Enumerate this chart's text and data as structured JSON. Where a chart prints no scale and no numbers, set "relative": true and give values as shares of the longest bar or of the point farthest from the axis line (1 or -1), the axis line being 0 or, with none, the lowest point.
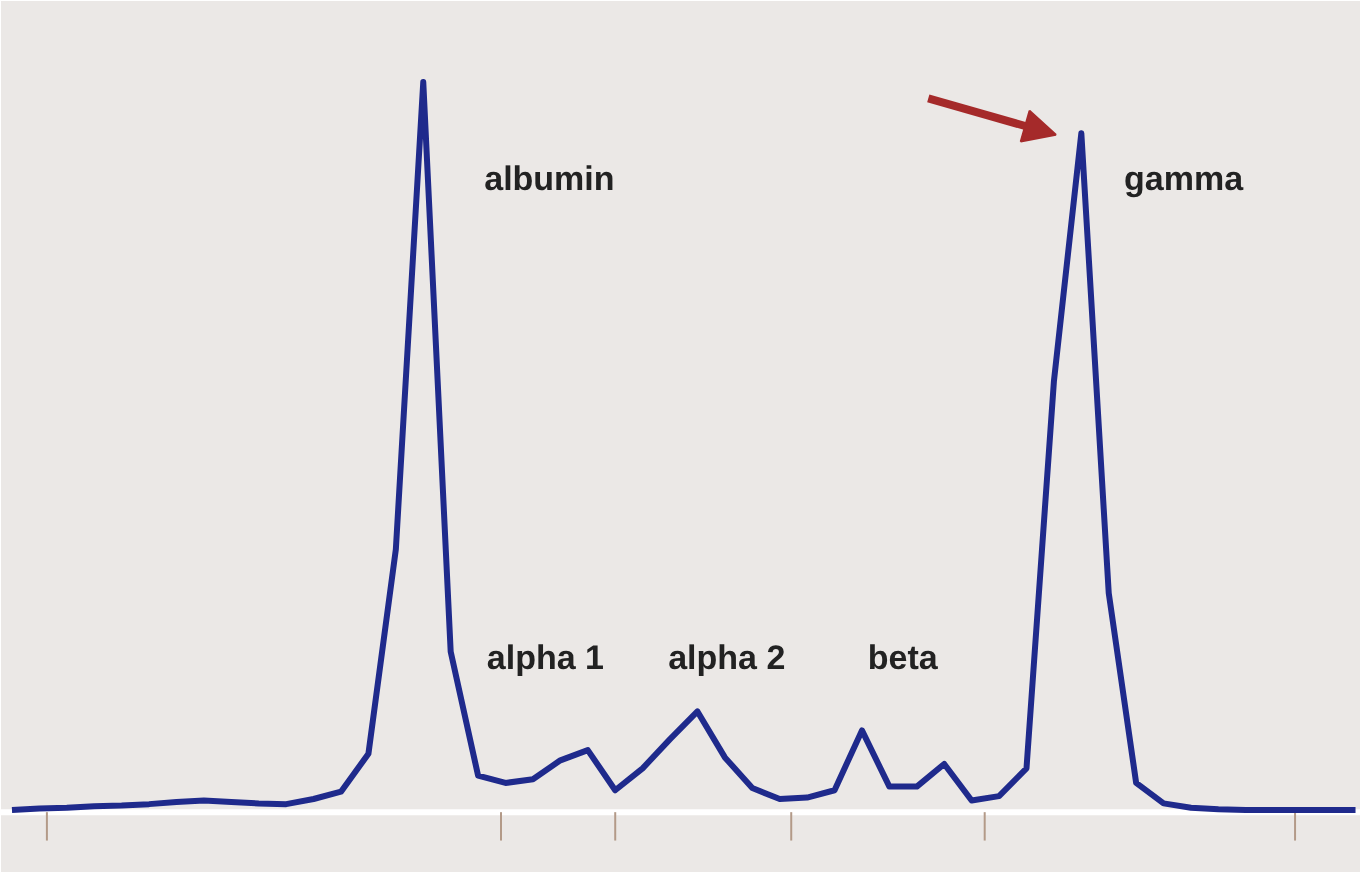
{
  "chart_data": {
    "type": "line",
    "relative": true,
    "marker": "none",
    "line_style": "solid",
    "categories": [
      null,
      null,
      null,
      null,
      null,
      null,
      null,
      null,
      null,
      null,
      null,
      null,
      null,
      null,
      null,
      null,
      null,
      null,
      null,
      null,
      null,
      null,
      null,
      null,
      null,
      null,
      null,
      null,
      null,
      null,
      null,
      null,
      null,
      null,
      null,
      null,
      null,
      null,
      null,
      null,
      null,
      null,
      null,
      null,
      null,
      null,
      null,
      null,
      null,
      null
    ],
    "series": [
      {
        "color": "#1f2a8c",
        "values": [
          0.003,
          0.005,
          0.006,
          0.008,
          0.009,
          0.011,
          0.014,
          0.016,
          0.014,
          0.012,
          0.011,
          0.018,
          0.028,
          0.08,
          0.36,
          1.0,
          0.22,
          0.05,
          0.04,
          0.045,
          0.071,
          0.085,
          0.03,
          0.06,
          0.1,
          0.138,
          0.075,
          0.033,
          0.018,
          0.02,
          0.03,
          0.112,
          0.035,
          0.035,
          0.066,
          0.016,
          0.022,
          0.06,
          0.59,
          0.93,
          0.3,
          0.04,
          0.012,
          0.006,
          0.004,
          0.003,
          0.003,
          0.003,
          0.003,
          0.003
        ]
      }
    ],
    "annotations": [
      "albumin",
      "alpha 1",
      "alpha 2",
      "beta",
      "gamma"
    ]
  }
}
